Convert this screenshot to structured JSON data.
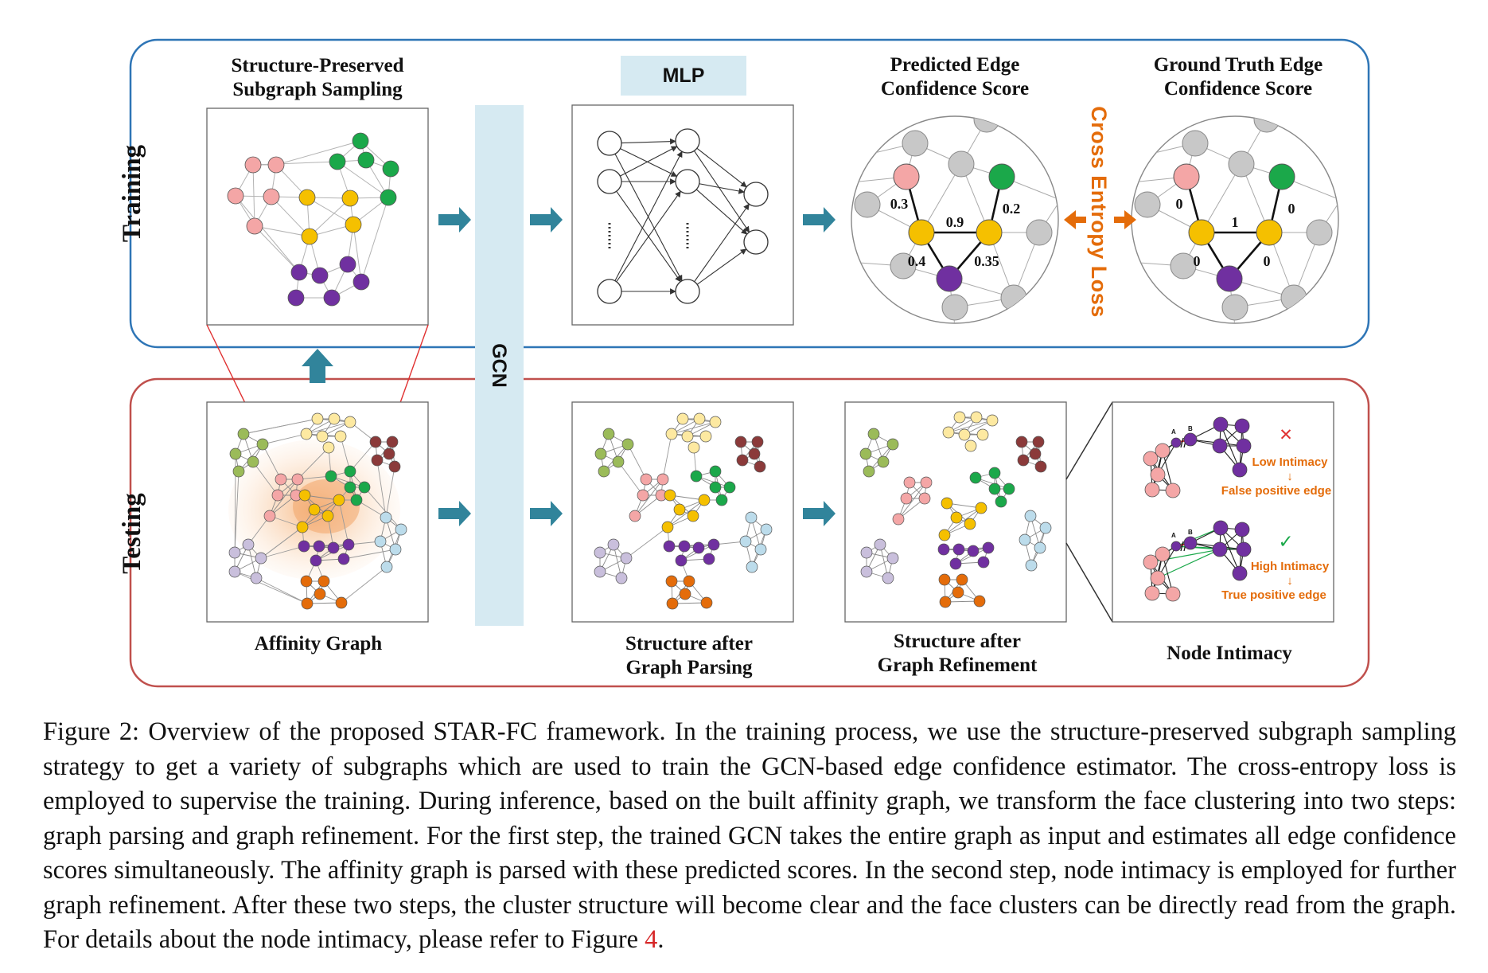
{
  "colors": {
    "training_border": "#2e75b6",
    "testing_border": "#c0504d",
    "arrow": "#31849b",
    "gcn_bar": "#d6eaf2",
    "mlp_box": "#d6eaf2",
    "orange": "#e46c0a",
    "pink": "#f4a6a6",
    "green": "#1ba84a",
    "yellow": "#f5c000",
    "purple": "#7030a0",
    "gray": "#c8c8c8",
    "olive": "#9bbb59",
    "lightyellow": "#fde9a1",
    "darkred": "#8b3a3a",
    "lavender": "#c9bfdc",
    "lightblue": "#bcdceb",
    "orangenode": "#e46c0a",
    "red_line": "#e03030"
  },
  "training": {
    "side_label": "Training",
    "subgraph_title_1": "Structure-Preserved",
    "subgraph_title_2": "Subgraph Sampling",
    "mlp_label": "MLP",
    "pred_title_1": "Predicted Edge",
    "pred_title_2": "Confidence Score",
    "gt_title_1": "Ground Truth Edge",
    "gt_title_2": "Confidence Score",
    "loss_label": "Cross Entropy Loss",
    "pred_scores": {
      "left": "0.3",
      "middle": "0.9",
      "right": "0.2",
      "bottom_left": "0.4",
      "bottom_right": "0.35"
    },
    "gt_scores": {
      "left": "0",
      "middle": "1",
      "right": "0",
      "bottom_left": "0",
      "bottom_right": "0"
    }
  },
  "gcn_label": "GCN",
  "testing": {
    "side_label": "Testing",
    "affinity_label": "Affinity Graph",
    "parsing_label_1": "Structure after",
    "parsing_label_2": "Graph Parsing",
    "refine_label_1": "Structure after",
    "refine_label_2": "Graph Refinement",
    "intimacy_label": "Node Intimacy",
    "intimacy": {
      "node_a": "A",
      "node_b": "B",
      "low_mark": "✕",
      "low_text": "Low Intimacy",
      "low_arrow": "↓",
      "low_result": "False positive edge",
      "high_mark": "✓",
      "high_text": "High Intimacy",
      "high_arrow": "↓",
      "high_result": "True positive edge"
    }
  },
  "caption": {
    "text": "Figure 2: Overview of the proposed STAR-FC framework. In the training process, we use the structure-preserved subgraph sampling strategy to get a variety of subgraphs which are used to train the GCN-based edge confidence estimator. The cross-entropy loss is employed to supervise the training. During inference, based on the built affinity graph, we transform the face clustering into two steps: graph parsing and graph refinement. For the first step, the trained GCN takes the entire graph as input and estimates all edge confidence scores simultaneously. The affinity graph is parsed with these predicted scores. In the second step, node intimacy is employed for further graph refinement. After these two steps, the cluster structure will become clear and the face clusters can be directly read from the graph. For details about the node intimacy, please refer to Figure ",
    "ref": "4",
    "end": "."
  }
}
